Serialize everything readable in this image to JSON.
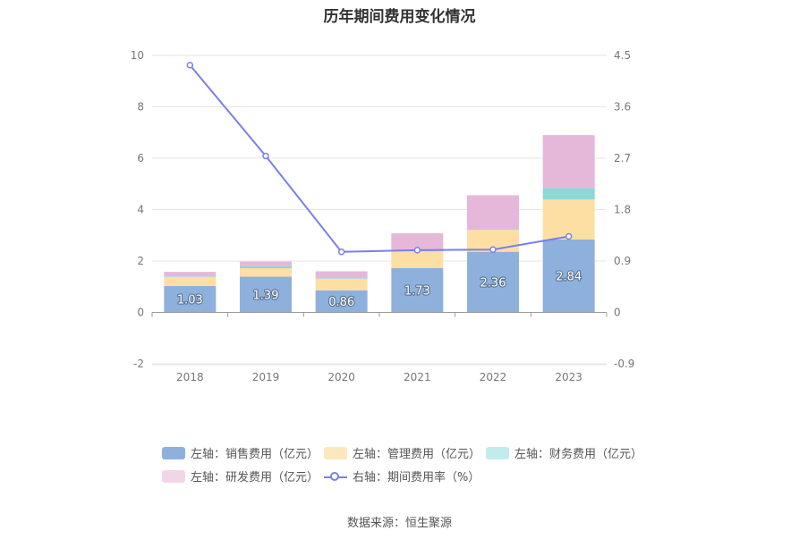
{
  "chart_data": {
    "type": "bar",
    "title": "历年期间费用变化情况",
    "categories": [
      "2018",
      "2019",
      "2020",
      "2021",
      "2022",
      "2023"
    ],
    "series": [
      {
        "name": "左轴：销售费用（亿元）",
        "axis": "left",
        "color": "#8eb0dd",
        "values": [
          1.03,
          1.39,
          0.86,
          1.73,
          2.36,
          2.84
        ]
      },
      {
        "name": "左轴：管理费用（亿元）",
        "axis": "left",
        "color": "#fddfa4",
        "values": [
          0.35,
          0.33,
          0.45,
          0.65,
          0.85,
          1.55
        ]
      },
      {
        "name": "左轴：财务费用（亿元）",
        "axis": "left",
        "color": "#8dd7d6",
        "values": [
          0.02,
          0.08,
          0.02,
          0.02,
          0.03,
          0.45
        ]
      },
      {
        "name": "左轴：研发费用（亿元）",
        "axis": "left",
        "color": "#e5b8d9",
        "values": [
          0.18,
          0.18,
          0.27,
          0.68,
          1.32,
          2.06
        ]
      },
      {
        "name": "右轴：期间费用率（%）",
        "axis": "right",
        "type": "line",
        "color": "#7b7fe6",
        "values": [
          4.33,
          2.74,
          1.06,
          1.09,
          1.1,
          1.33
        ]
      }
    ],
    "left_axis": {
      "min": -2,
      "max": 10,
      "ticks": [
        "-2",
        "0",
        "2",
        "4",
        "6",
        "8",
        "10"
      ]
    },
    "right_axis": {
      "min": -0.9,
      "max": 4.5,
      "ticks": [
        "-0.9",
        "0",
        "0.9",
        "1.8",
        "2.7",
        "3.6",
        "4.5"
      ]
    },
    "bar_labels": [
      "1.03",
      "1.39",
      "0.86",
      "1.73",
      "2.36",
      "2.84"
    ]
  },
  "legend": {
    "sales": "左轴：销售费用（亿元）",
    "admin": "左轴：管理费用（亿元）",
    "finance": "左轴：财务费用（亿元）",
    "rnd": "左轴：研发费用（亿元）",
    "rate": "右轴：期间费用率（%）"
  },
  "source": "数据来源：恒生聚源"
}
